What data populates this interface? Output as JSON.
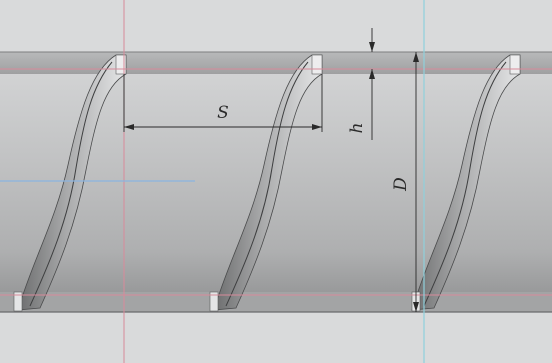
{
  "dimensions": {
    "pitch_label": "S",
    "height_label": "h",
    "diameter_label": "D"
  },
  "colors": {
    "background": "#d9dadb",
    "shaft_top": "#cdcecf",
    "shaft_mid": "#b4b5b6",
    "shaft_bottom": "#9b9c9d",
    "rib": "#8f9091",
    "rib_dark": "#505152",
    "reference_line_red": "#d88a9a",
    "reference_line_cyan": "#8fd0dc",
    "reference_line_blue": "#8ab4e0",
    "dimension_line": "#2a2a2a"
  }
}
